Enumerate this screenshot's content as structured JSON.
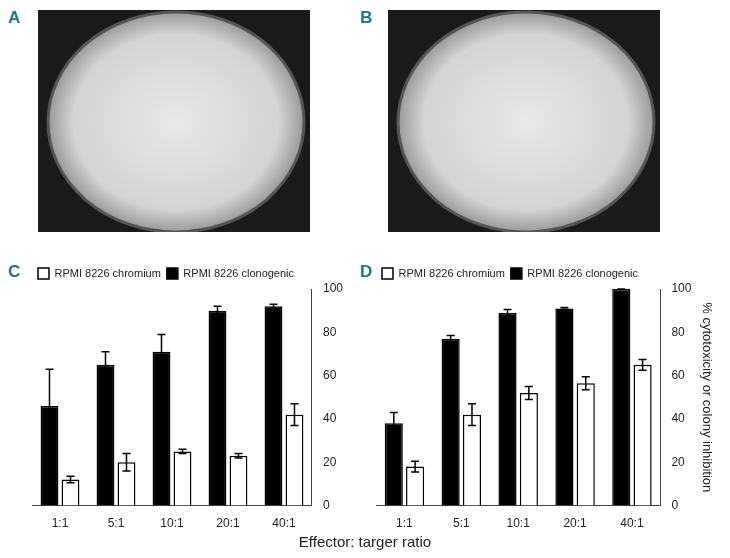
{
  "photos": [
    {
      "label": "A"
    },
    {
      "label": "B"
    }
  ],
  "shared_x_label": "Effector: targer ratio",
  "chart_data": [
    {
      "type": "bar",
      "title": "C",
      "categories": [
        "1:1",
        "5:1",
        "10:1",
        "20:1",
        "40:1"
      ],
      "series": [
        {
          "name": "RPMI 8226 clonogenic",
          "color": "#000000",
          "values": [
            46,
            65,
            71,
            90,
            92
          ],
          "errors": [
            17,
            6,
            8,
            2,
            1
          ]
        },
        {
          "name": "RPMI 8226 chromium",
          "color": "#ffffff",
          "values": [
            12,
            20,
            25,
            23,
            42
          ],
          "errors": [
            1.5,
            4,
            1,
            1,
            5
          ]
        }
      ],
      "ylim": [
        0,
        100
      ],
      "yticks": [
        0,
        20,
        40,
        60,
        80,
        100
      ],
      "grid": false,
      "legend": "top-left"
    },
    {
      "type": "bar",
      "title": "D",
      "y_label": "% cytotoxicity or colony inhibition",
      "categories": [
        "1:1",
        "5:1",
        "10:1",
        "20:1",
        "40:1"
      ],
      "series": [
        {
          "name": "RPMI 8226 clonogenic",
          "color": "#000000",
          "values": [
            38,
            77,
            89,
            91,
            100
          ],
          "errors": [
            5,
            1.5,
            1.5,
            0.5,
            0
          ]
        },
        {
          "name": "RPMI 8226 chromium",
          "color": "#ffffff",
          "values": [
            18,
            42,
            52,
            56.5,
            65
          ],
          "errors": [
            2.5,
            5,
            3,
            3,
            2.5
          ]
        }
      ],
      "ylim": [
        0,
        100
      ],
      "yticks": [
        0,
        20,
        40,
        60,
        80,
        100
      ],
      "grid": false,
      "legend": "top-left"
    }
  ]
}
